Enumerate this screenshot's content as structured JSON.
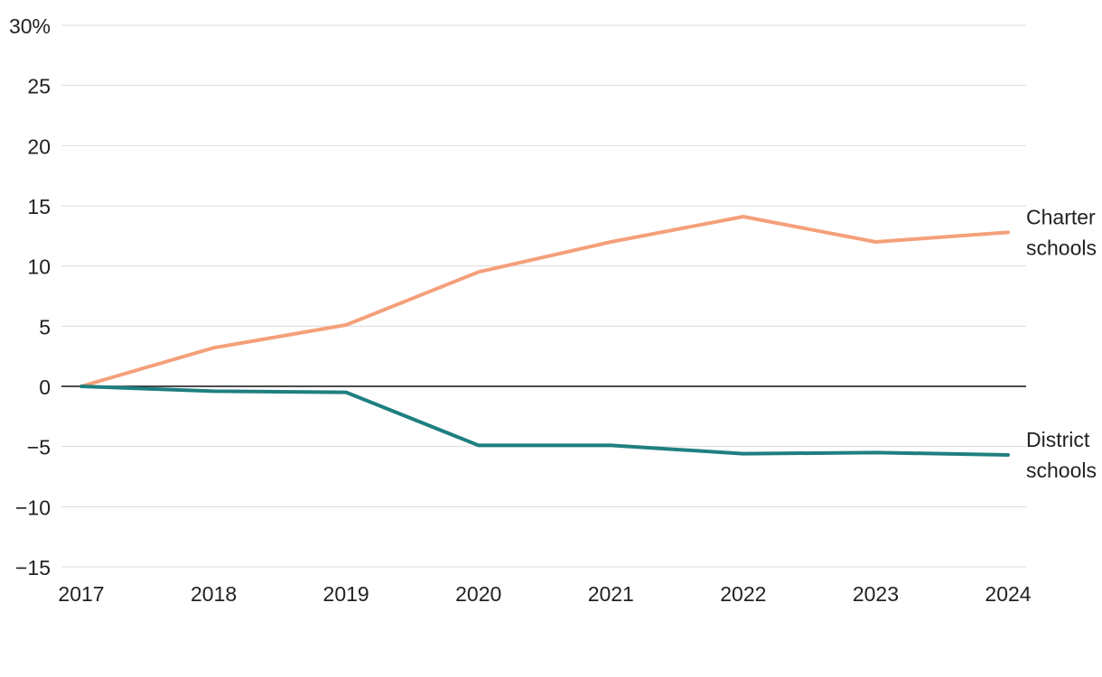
{
  "chart_data": {
    "type": "line",
    "title": "",
    "xlabel": "",
    "ylabel": "",
    "x": [
      "2017",
      "2018",
      "2019",
      "2020",
      "2021",
      "2022",
      "2023",
      "2024"
    ],
    "ylim": [
      -15,
      30
    ],
    "yticks": [
      {
        "value": 30,
        "label": "30%"
      },
      {
        "value": 25,
        "label": "25"
      },
      {
        "value": 20,
        "label": "20"
      },
      {
        "value": 15,
        "label": "15"
      },
      {
        "value": 10,
        "label": "10"
      },
      {
        "value": 5,
        "label": "5"
      },
      {
        "value": 0,
        "label": "0"
      },
      {
        "value": -5,
        "label": "−5"
      },
      {
        "value": -10,
        "label": "−10"
      },
      {
        "value": -15,
        "label": "−15"
      }
    ],
    "grid": true,
    "legend": "direct labels at line ends",
    "series": [
      {
        "name": "Charter schools",
        "label_lines": [
          "Charter",
          "schools"
        ],
        "color": "#f4a07a",
        "values": [
          0,
          3.2,
          5.1,
          9.5,
          12.0,
          14.1,
          12.0,
          12.8
        ]
      },
      {
        "name": "District schools",
        "label_lines": [
          "District",
          "schools"
        ],
        "color": "#1f7f80",
        "values": [
          0,
          -0.4,
          -0.5,
          -4.9,
          -4.9,
          -5.6,
          -5.5,
          -5.7
        ]
      }
    ]
  }
}
